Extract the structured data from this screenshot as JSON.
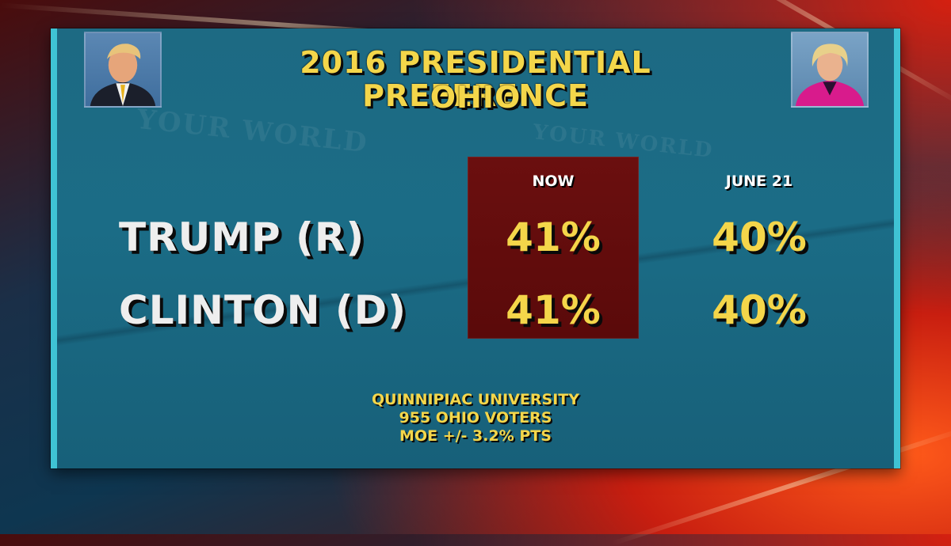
{
  "graphic": {
    "title_line1": "2016 PRESIDENTIAL PREFERENCE",
    "title_line2": "OHIO",
    "watermark_left": "YOUR WORLD",
    "watermark_right": "YOUR WORLD",
    "source_line1": "QUINNIPIAC UNIVERSITY",
    "source_line2": "955 OHIO VOTERS",
    "source_line3": "MOE +/- 3.2% PTS"
  },
  "colors": {
    "panel": "#1b6c86",
    "panel_border": "#3fc3d4",
    "highlight_box": "#5a0a0a",
    "title_text": "#f4d64a",
    "label_text": "#eeeeee"
  },
  "chart_data": {
    "type": "table",
    "title": "2016 PRESIDENTIAL PREFERENCE OHIO",
    "columns": [
      "NOW",
      "JUNE 21"
    ],
    "highlighted_column": "NOW",
    "rows": [
      {
        "label": "TRUMP (R)",
        "values": [
          "41%",
          "40%"
        ]
      },
      {
        "label": "CLINTON (D)",
        "values": [
          "41%",
          "40%"
        ]
      }
    ]
  }
}
